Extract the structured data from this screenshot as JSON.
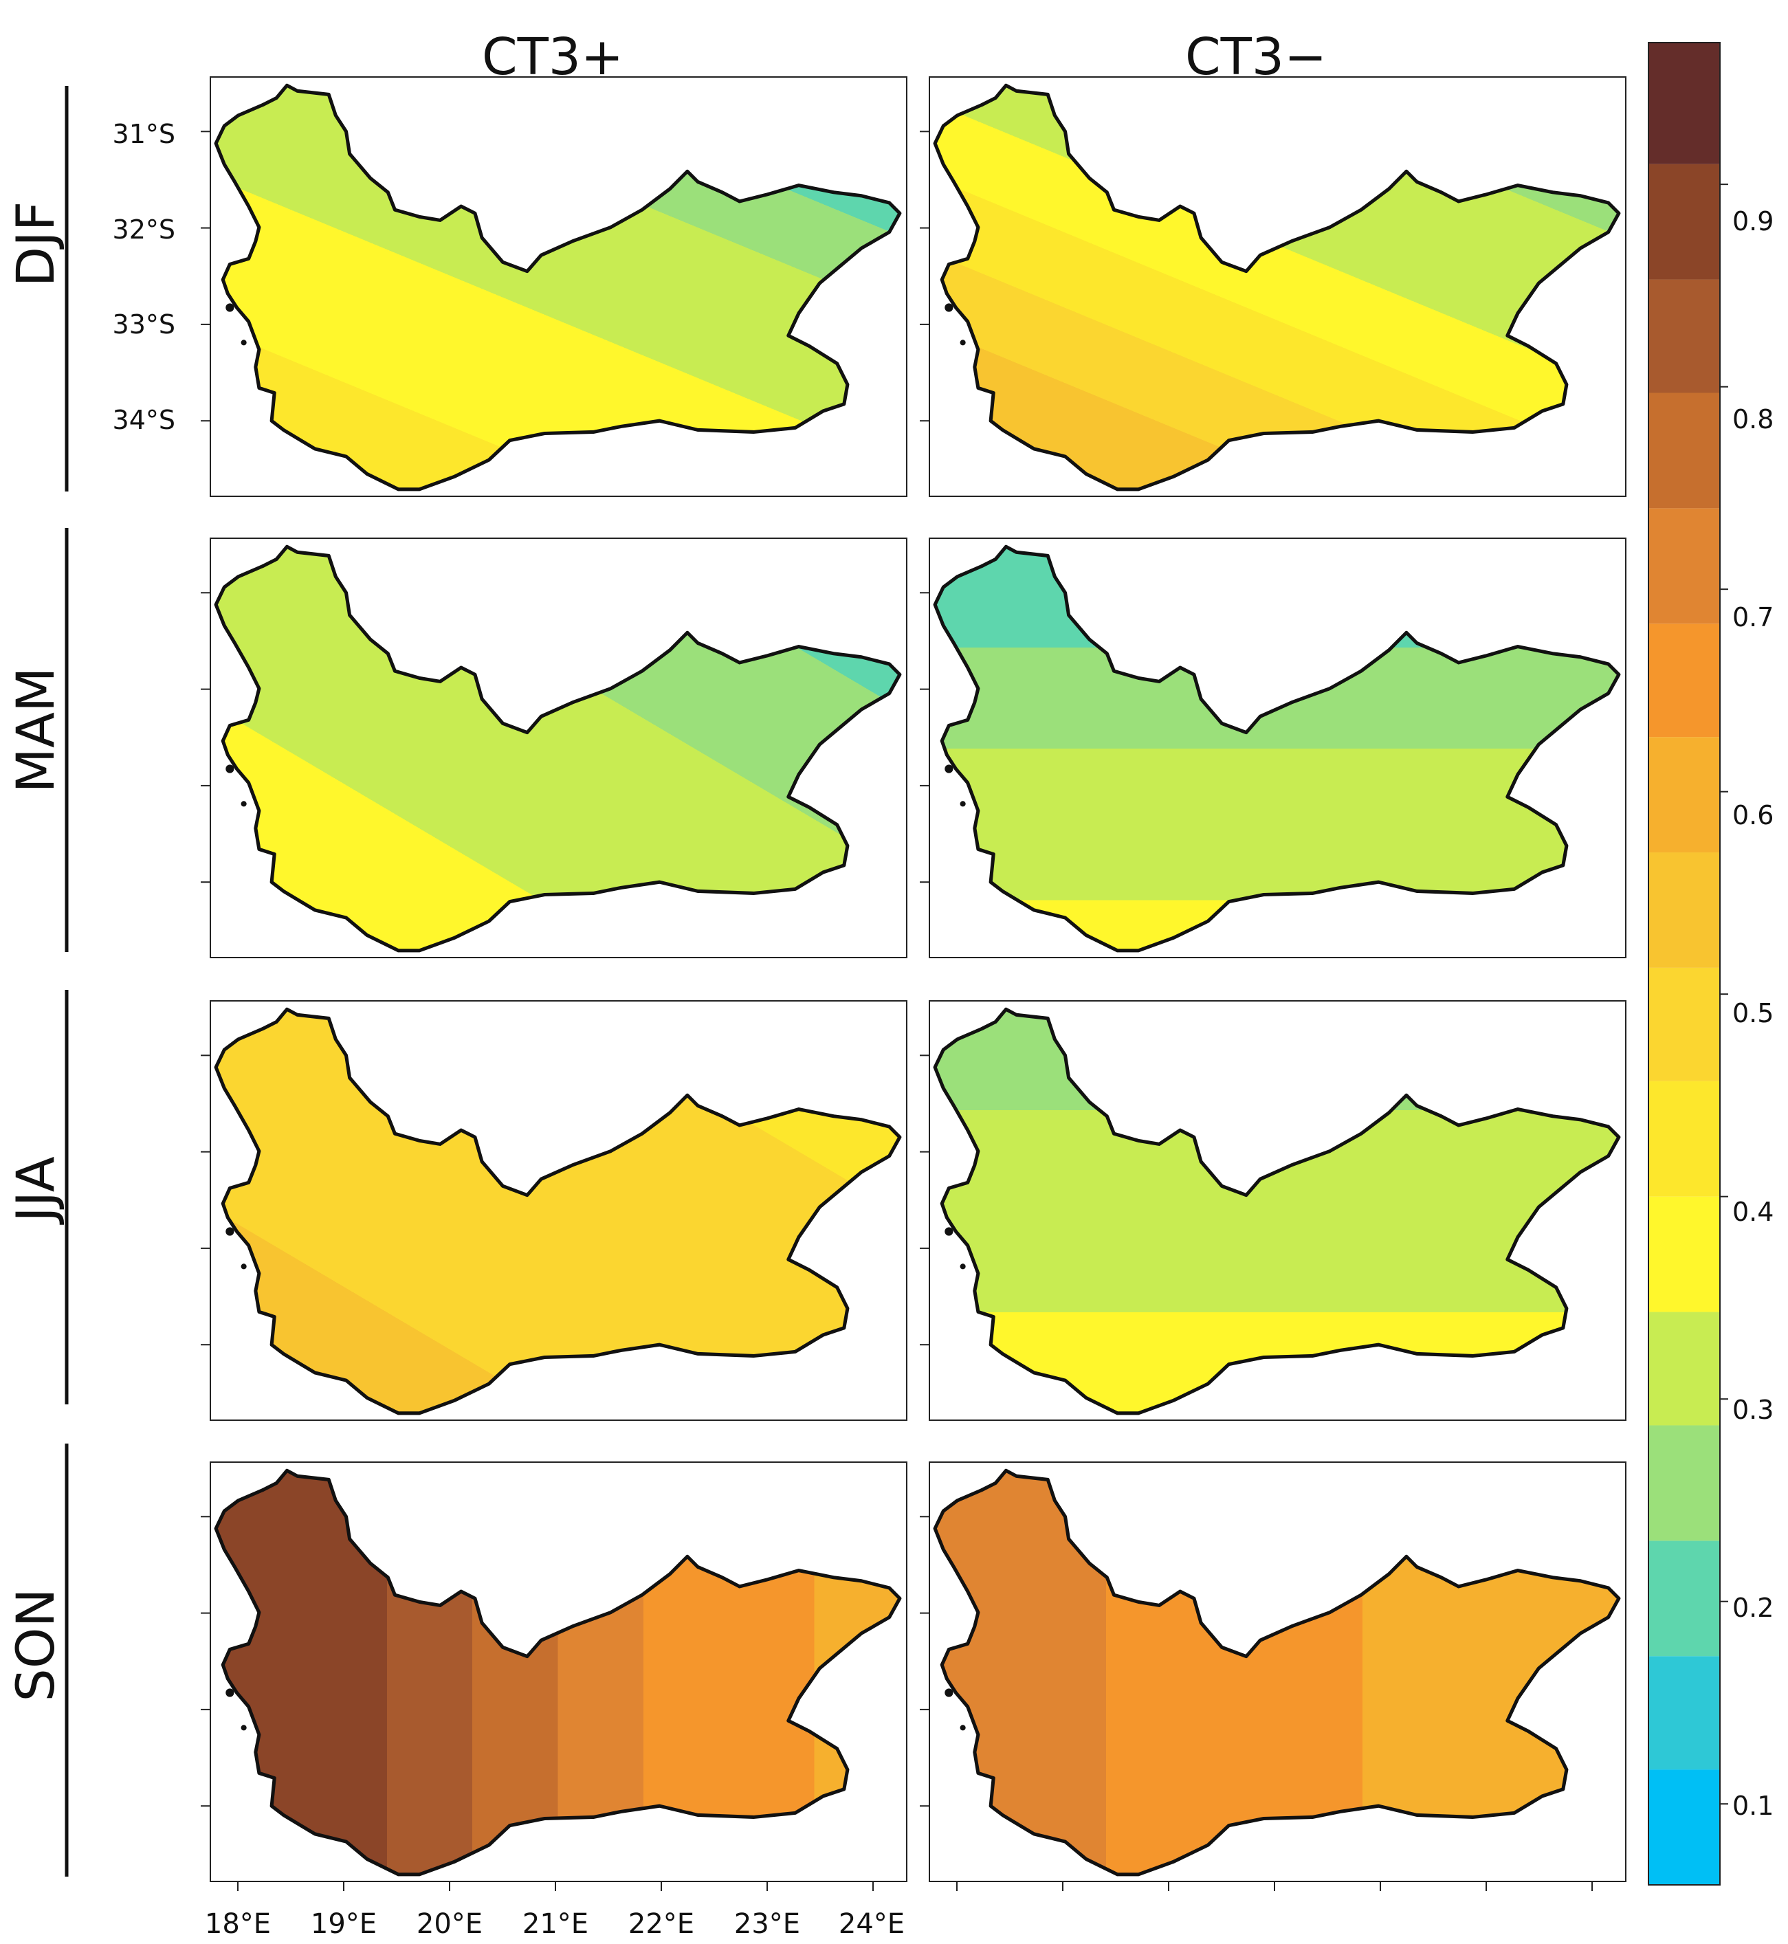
{
  "chart_data": {
    "type": "heatmap",
    "title": "",
    "columns": [
      "CT3+",
      "CT3−"
    ],
    "rows": [
      "DJF",
      "MAM",
      "JJA",
      "SON"
    ],
    "y_tick_labels": [
      "31°S",
      "32°S",
      "33°S",
      "34°S"
    ],
    "x_tick_labels": [
      "18°E",
      "19°E",
      "20°E",
      "21°E",
      "22°E",
      "23°E",
      "24°E"
    ],
    "colorbar": {
      "range": [
        0.06,
        0.97
      ],
      "tick_labels": [
        "0.1",
        "0.2",
        "0.3",
        "0.4",
        "0.5",
        "0.6",
        "0.7",
        "0.8",
        "0.9"
      ],
      "tick_values": [
        0.1,
        0.2,
        0.3,
        0.4,
        0.5,
        0.6,
        0.7,
        0.8,
        0.9
      ],
      "bins": [
        {
          "from": 0.06,
          "to": 0.117,
          "color": "#00bff5"
        },
        {
          "from": 0.117,
          "to": 0.173,
          "color": "#2ec8d6"
        },
        {
          "from": 0.173,
          "to": 0.23,
          "color": "#5ed6ad"
        },
        {
          "from": 0.23,
          "to": 0.287,
          "color": "#9be07a"
        },
        {
          "from": 0.287,
          "to": 0.343,
          "color": "#c8ec52"
        },
        {
          "from": 0.343,
          "to": 0.4,
          "color": "#fff72c"
        },
        {
          "from": 0.4,
          "to": 0.457,
          "color": "#fde72c"
        },
        {
          "from": 0.457,
          "to": 0.513,
          "color": "#fbd630"
        },
        {
          "from": 0.513,
          "to": 0.57,
          "color": "#f8c430"
        },
        {
          "from": 0.57,
          "to": 0.627,
          "color": "#f6b02e"
        },
        {
          "from": 0.627,
          "to": 0.683,
          "color": "#f5962c"
        },
        {
          "from": 0.683,
          "to": 0.74,
          "color": "#e08532"
        },
        {
          "from": 0.74,
          "to": 0.797,
          "color": "#c66f2e"
        },
        {
          "from": 0.797,
          "to": 0.853,
          "color": "#a85a2e"
        },
        {
          "from": 0.853,
          "to": 0.91,
          "color": "#8b4528"
        },
        {
          "from": 0.91,
          "to": 0.97,
          "color": "#642d2a"
        }
      ]
    },
    "panels": [
      {
        "row": "DJF",
        "column": "CT3+",
        "range": [
          0.18,
          0.44
        ],
        "dominant": 0.4
      },
      {
        "row": "DJF",
        "column": "CT3−",
        "range": [
          0.17,
          0.56
        ],
        "dominant": 0.42
      },
      {
        "row": "MAM",
        "column": "CT3+",
        "range": [
          0.17,
          0.38
        ],
        "dominant": 0.26
      },
      {
        "row": "MAM",
        "column": "CT3−",
        "range": [
          0.18,
          0.38
        ],
        "dominant": 0.24
      },
      {
        "row": "JJA",
        "column": "CT3+",
        "range": [
          0.43,
          0.55
        ],
        "dominant": 0.5
      },
      {
        "row": "JJA",
        "column": "CT3−",
        "range": [
          0.26,
          0.38
        ],
        "dominant": 0.31
      },
      {
        "row": "SON",
        "column": "CT3+",
        "range": [
          0.57,
          0.93
        ],
        "dominant": 0.8
      },
      {
        "row": "SON",
        "column": "CT3−",
        "range": [
          0.57,
          0.73
        ],
        "dominant": 0.64
      }
    ]
  }
}
